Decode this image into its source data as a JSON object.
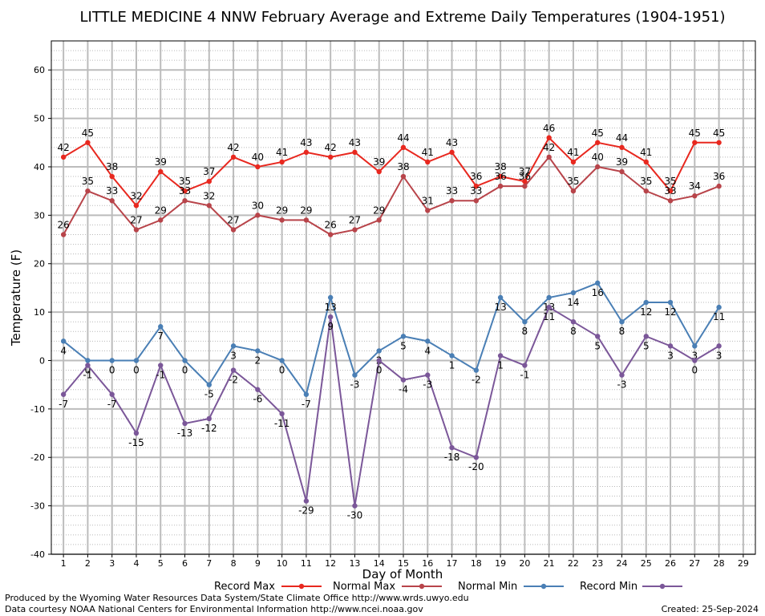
{
  "chart_data": {
    "type": "line",
    "title": "LITTLE MEDICINE 4 NNW February Average and Extreme Daily Temperatures (1904-1951)",
    "xlabel": "Day of Month",
    "ylabel": "Temperature (F)",
    "xlim": [
      0.5,
      29.5
    ],
    "ylim": [
      -40,
      66
    ],
    "yticks": [
      -40,
      -30,
      -20,
      -10,
      0,
      10,
      20,
      30,
      40,
      50,
      60
    ],
    "xticks": [
      1,
      2,
      3,
      4,
      5,
      6,
      7,
      8,
      9,
      10,
      11,
      12,
      13,
      14,
      15,
      16,
      17,
      18,
      19,
      20,
      21,
      22,
      23,
      24,
      25,
      26,
      27,
      28,
      29
    ],
    "grid": true,
    "legend_position": "bottom",
    "series": [
      {
        "name": "Record Max",
        "color": "#e8281f",
        "labels_position": "above",
        "values": [
          42,
          45,
          38,
          32,
          39,
          35,
          37,
          42,
          40,
          41,
          43,
          42,
          43,
          39,
          44,
          41,
          43,
          36,
          38,
          37,
          46,
          41,
          45,
          44,
          41,
          35,
          45,
          45
        ]
      },
      {
        "name": "Normal Max",
        "color": "#b8444a",
        "labels_position": "above",
        "values": [
          26,
          35,
          33,
          27,
          29,
          33,
          32,
          27,
          30,
          29,
          29,
          26,
          27,
          29,
          38,
          31,
          33,
          33,
          36,
          36,
          42,
          35,
          40,
          39,
          35,
          33,
          34,
          36
        ]
      },
      {
        "name": "Normal Min",
        "color": "#4a7fb5",
        "labels_position": "below",
        "values": [
          4,
          0,
          0,
          0,
          7,
          0,
          -5,
          3,
          2,
          0,
          -7,
          13,
          -3,
          2,
          5,
          4,
          1,
          -2,
          13,
          8,
          13,
          14,
          16,
          8,
          12,
          12,
          3,
          11
        ]
      },
      {
        "name": "Record Min",
        "color": "#7b5799",
        "labels_position": "below",
        "values": [
          -7,
          -1,
          -7,
          -15,
          -1,
          -13,
          -12,
          -2,
          -6,
          -11,
          -29,
          9,
          -30,
          0,
          -4,
          -3,
          -18,
          -20,
          1,
          -1,
          11,
          8,
          5,
          -3,
          5,
          3,
          0,
          3
        ]
      }
    ]
  },
  "footer": {
    "produced_by": "Produced by the Wyoming Water Resources Data System/State Climate Office http://www.wrds.uwyo.edu",
    "courtesy": "Data courtesy NOAA National Centers for Environmental Information http://www.ncei.noaa.gov",
    "created": "Created: 25-Sep-2024"
  }
}
